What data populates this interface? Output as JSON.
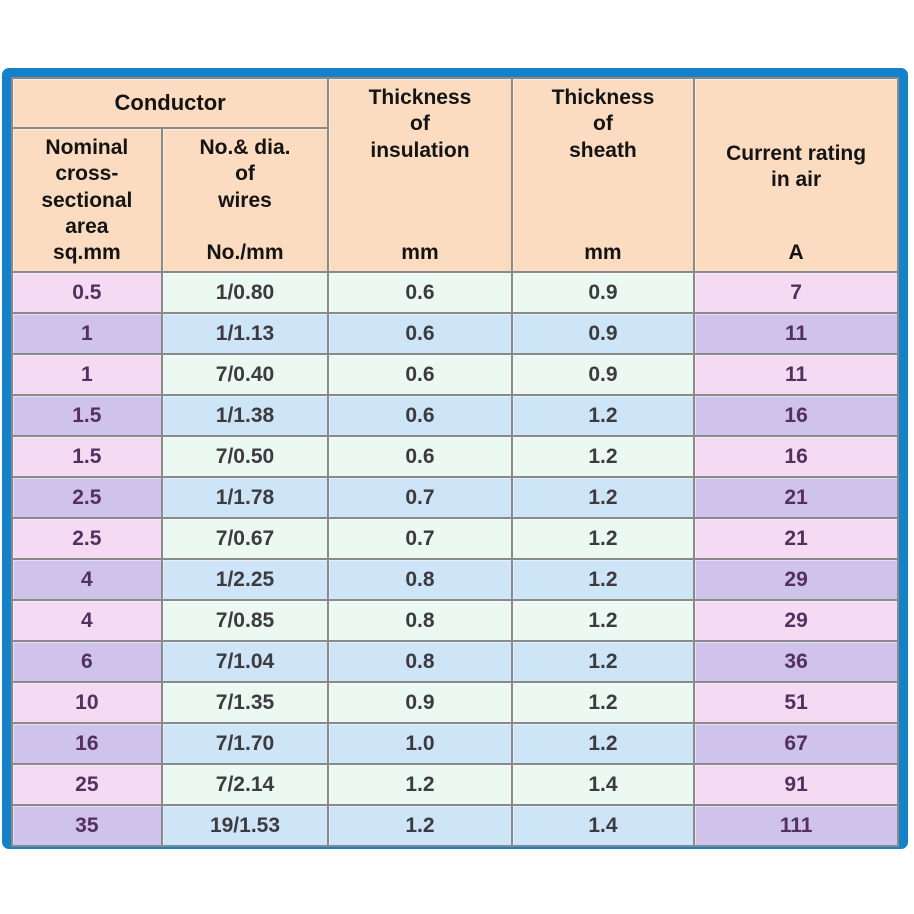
{
  "chart_data": {
    "type": "table",
    "header": {
      "conductor_group": "Conductor"
    },
    "columns": [
      {
        "key": "nominal-area",
        "label": "Nominal\ncross-\nsectional\narea",
        "unit": "sq.mm"
      },
      {
        "key": "wires",
        "label": "No.& dia.\nof\nwires",
        "unit": "No./mm"
      },
      {
        "key": "insulation",
        "label": "Thickness\nof\ninsulation",
        "unit": "mm"
      },
      {
        "key": "sheath",
        "label": "Thickness\nof\nsheath",
        "unit": "mm"
      },
      {
        "key": "current",
        "label": "Current rating\nin air",
        "unit": "A"
      }
    ],
    "rows": [
      [
        "0.5",
        "1/0.80",
        "0.6",
        "0.9",
        "7"
      ],
      [
        "1",
        "1/1.13",
        "0.6",
        "0.9",
        "11"
      ],
      [
        "1",
        "7/0.40",
        "0.6",
        "0.9",
        "11"
      ],
      [
        "1.5",
        "1/1.38",
        "0.6",
        "1.2",
        "16"
      ],
      [
        "1.5",
        "7/0.50",
        "0.6",
        "1.2",
        "16"
      ],
      [
        "2.5",
        "1/1.78",
        "0.7",
        "1.2",
        "21"
      ],
      [
        "2.5",
        "7/0.67",
        "0.7",
        "1.2",
        "21"
      ],
      [
        "4",
        "1/2.25",
        "0.8",
        "1.2",
        "29"
      ],
      [
        "4",
        "7/0.85",
        "0.8",
        "1.2",
        "29"
      ],
      [
        "6",
        "7/1.04",
        "0.8",
        "1.2",
        "36"
      ],
      [
        "10",
        "7/1.35",
        "0.9",
        "1.2",
        "51"
      ],
      [
        "16",
        "7/1.70",
        "1.0",
        "1.2",
        "67"
      ],
      [
        "25",
        "7/2.14",
        "1.2",
        "1.4",
        "91"
      ],
      [
        "35",
        "19/1.53",
        "1.2",
        "1.4",
        "111"
      ]
    ]
  },
  "colors": {
    "frame_blue": "#1581c9",
    "header_bg": "#fbdcc1",
    "grid_line": "#8a8a8a",
    "row_odd_outer": "#f5daf3",
    "row_even_outer": "#cfc3ec",
    "row_odd_inner": "#ecf9f2",
    "row_even_inner": "#cee4f7",
    "text_outer": "#54305f",
    "text_inner": "#3c3c40",
    "header_text": "#141414"
  }
}
